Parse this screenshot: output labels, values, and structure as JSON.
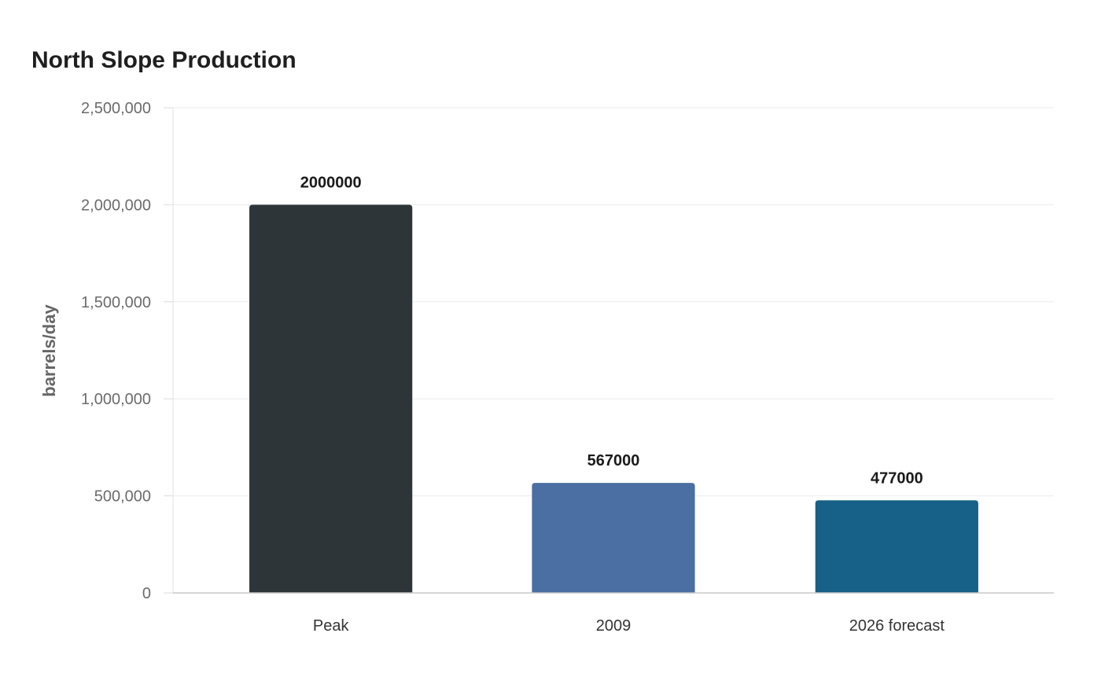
{
  "chart_data": {
    "type": "bar",
    "title": "North Slope Production",
    "xlabel": "",
    "ylabel": "barrels/day",
    "categories": [
      "Peak",
      "2009",
      "2026 forecast"
    ],
    "values": [
      2000000,
      567000,
      477000
    ],
    "data_labels": [
      "2000000",
      "567000",
      "477000"
    ],
    "bar_colors": [
      "#2e3538",
      "#4b6ea3",
      "#176087"
    ],
    "ylim": [
      0,
      2500000
    ],
    "yticks": [
      0,
      500000,
      1000000,
      1500000,
      2000000,
      2500000
    ],
    "ytick_labels": [
      "0",
      "500,000",
      "1,000,000",
      "1,500,000",
      "2,000,000",
      "2,500,000"
    ],
    "grid": true,
    "legend": "none"
  }
}
